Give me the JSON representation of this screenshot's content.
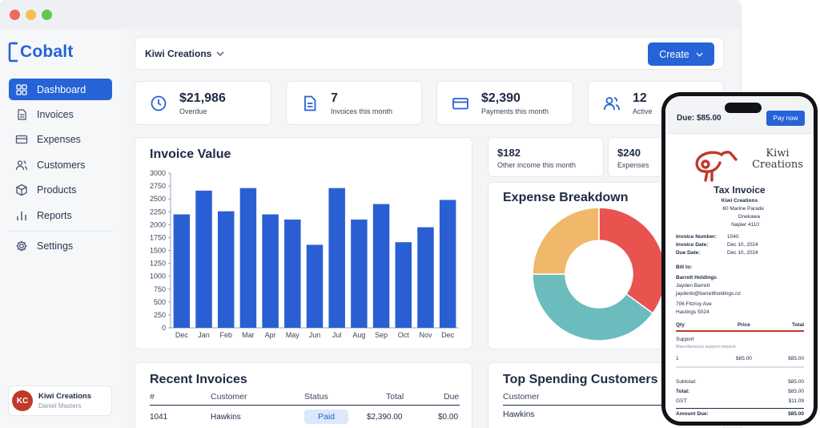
{
  "app": {
    "name": "Cobalt"
  },
  "sidebar": {
    "items": [
      {
        "label": "Dashboard",
        "icon": "dashboard-icon"
      },
      {
        "label": "Invoices",
        "icon": "invoice-icon"
      },
      {
        "label": "Expenses",
        "icon": "card-icon"
      },
      {
        "label": "Customers",
        "icon": "users-icon"
      },
      {
        "label": "Products",
        "icon": "box-icon"
      },
      {
        "label": "Reports",
        "icon": "bar-chart-icon"
      }
    ],
    "settings_label": "Settings",
    "user": {
      "initials": "KC",
      "name": "Kiwi Creations",
      "subtitle": "Daniel Masters"
    }
  },
  "topbar": {
    "org": "Kiwi Creations",
    "create_label": "Create"
  },
  "stats": [
    {
      "value": "$21,986",
      "label": "Overdue",
      "icon": "clock-icon"
    },
    {
      "value": "7",
      "label": "Invoices this month",
      "icon": "document-icon"
    },
    {
      "value": "$2,390",
      "label": "Payments this month",
      "icon": "card-icon"
    },
    {
      "value": "12",
      "label": "Active",
      "icon": "users-icon"
    }
  ],
  "mini_stats": [
    {
      "value": "$182",
      "label": "Other income this month"
    },
    {
      "value": "$240",
      "label": "Expenses"
    }
  ],
  "colors": {
    "accent": "#2563d6",
    "donut": [
      "#e8534f",
      "#6abcbd",
      "#f0b86a"
    ]
  },
  "chart_data": [
    {
      "type": "bar",
      "title": "Invoice Value",
      "categories": [
        "Dec",
        "Jan",
        "Feb",
        "Mar",
        "Apr",
        "May",
        "Jun",
        "Jul",
        "Aug",
        "Sep",
        "Oct",
        "Nov",
        "Dec"
      ],
      "values": [
        2200,
        2660,
        2260,
        2710,
        2200,
        2100,
        1610,
        2710,
        2100,
        2400,
        1660,
        1950,
        2480
      ],
      "ylim": [
        0,
        3000
      ],
      "yticks": [
        "3000",
        "2750",
        "2500",
        "2250",
        "2000",
        "1750",
        "1500",
        "1250",
        "1000",
        "750",
        "500",
        "250",
        "0"
      ],
      "xlabel": "",
      "ylabel": "",
      "grid": false,
      "color": "#2a5fd3"
    },
    {
      "type": "pie",
      "title": "Expense Breakdown",
      "values": [
        35,
        40,
        25
      ],
      "colors": [
        "#e8534f",
        "#6abcbd",
        "#f0b86a"
      ],
      "donut": true
    }
  ],
  "recent_invoices": {
    "title": "Recent Invoices",
    "headers": [
      "#",
      "Customer",
      "Status",
      "Total",
      "Due"
    ],
    "rows": [
      {
        "number": "1041",
        "customer": "Hawkins",
        "status": "Paid",
        "total": "$2,390.00",
        "due": "$0.00"
      }
    ]
  },
  "top_customers": {
    "title": "Top Spending Customers",
    "header": "Customer",
    "rows": [
      "Hawkins"
    ]
  },
  "phone": {
    "due": "Due: $85.00",
    "pay_label": "Pay now",
    "logo_text_1": "Kiwi",
    "logo_text_2": "Creations",
    "title": "Tax Invoice",
    "company": "Kiwi Creations",
    "address": [
      "60 Marine Parade",
      "Onekawa",
      "Napier 4110"
    ],
    "meta": [
      {
        "label": "Invoice Number:",
        "value": "1040"
      },
      {
        "label": "Invoice Date:",
        "value": "Dec 10, 2024"
      },
      {
        "label": "Due Date:",
        "value": "Dec 10, 2024"
      }
    ],
    "bill_to_label": "Bill to:",
    "bill_to": [
      "Barrett Holdings",
      "Jayden Barrett",
      "jaydenb@barrettholdings.nz",
      "706 Fitzroy Ave",
      "Hastings 5024"
    ],
    "line_headers": [
      "Qty",
      "Price",
      "Total"
    ],
    "item_name": "Support",
    "item_desc": "Miscellaneous support request",
    "item": {
      "qty": "1",
      "price": "$85.00",
      "total": "$85.00"
    },
    "totals": [
      {
        "label": "Subtotal:",
        "value": "$85.00"
      },
      {
        "label": "Total:",
        "value": "$85.00"
      },
      {
        "label": "GST:",
        "value": "$11.09"
      },
      {
        "label": "Amount Due:",
        "value": "$85.00"
      }
    ]
  }
}
